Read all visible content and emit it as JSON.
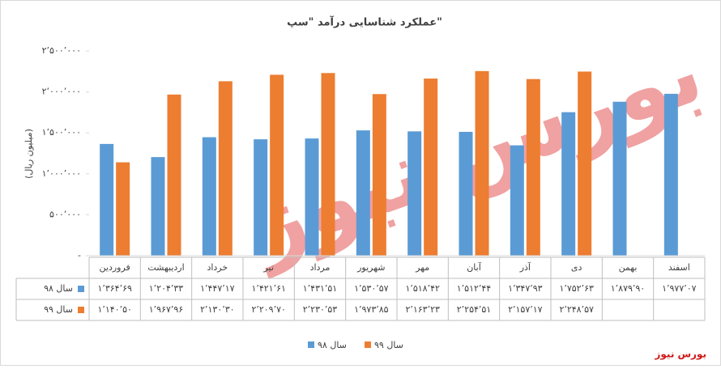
{
  "chart_data": {
    "type": "bar",
    "title": "عملکرد شناسایی درآمد \"سپ\"",
    "y_label": "(میلیون ریال)",
    "source": "بورس نیوز",
    "categories": [
      "فروردین",
      "اردیبهشت",
      "خرداد",
      "تیر",
      "مرداد",
      "شهریور",
      "مهر",
      "آبان",
      "آذر",
      "دی",
      "بهمن",
      "اسفند"
    ],
    "series": [
      {
        "name": "سال ۹۸",
        "color": "#5b9bd5",
        "values": [
          1364690,
          1204330,
          1447170,
          1421610,
          1431510,
          1530570,
          1518420,
          1512440,
          1347930,
          1752630,
          1879900,
          1977070
        ],
        "value_labels": [
          "۱٬۳۶۴٬۶۹",
          "۱٬۲۰۴٬۳۳",
          "۱٬۴۴۷٬۱۷",
          "۱٬۴۲۱٬۶۱",
          "۱٬۴۳۱٬۵۱",
          "۱٬۵۳۰٬۵۷",
          "۱٬۵۱۸٬۴۲",
          "۱٬۵۱۲٬۴۴",
          "۱٬۳۴۷٬۹۳",
          "۱٬۷۵۲٬۶۳",
          "۱٬۸۷۹٬۹۰",
          "۱٬۹۷۷٬۰۷"
        ]
      },
      {
        "name": "سال ۹۹",
        "color": "#ed7d31",
        "values": [
          1140500,
          1967960,
          2130300,
          2209700,
          2230530,
          1973850,
          2163230,
          2254510,
          2157170,
          2248570,
          null,
          null
        ],
        "value_labels": [
          "۱٬۱۴۰٬۵۰",
          "۱٬۹۶۷٬۹۶",
          "۲٬۱۳۰٬۳۰",
          "۲٬۲۰۹٬۷۰",
          "۲٬۲۳۰٬۵۳",
          "۱٬۹۷۳٬۸۵",
          "۲٬۱۶۳٬۲۳",
          "۲٬۲۵۴٬۵۱",
          "۲٬۱۵۷٬۱۷",
          "۲٬۲۴۸٬۵۷",
          null,
          null
        ]
      }
    ],
    "ylim": [
      0,
      2500000
    ],
    "yticks": [
      {
        "value": 0,
        "label": "-"
      },
      {
        "value": 500000,
        "label": "۵۰۰٬۰۰۰"
      },
      {
        "value": 1000000,
        "label": "۱٬۰۰۰٬۰۰۰"
      },
      {
        "value": 1500000,
        "label": "۱٬۵۰۰٬۰۰۰"
      },
      {
        "value": 2000000,
        "label": "۲٬۰۰۰٬۰۰۰"
      },
      {
        "value": 2500000,
        "label": "۲٬۵۰۰٬۰۰۰"
      }
    ],
    "grid": false,
    "legend": "bottom"
  }
}
